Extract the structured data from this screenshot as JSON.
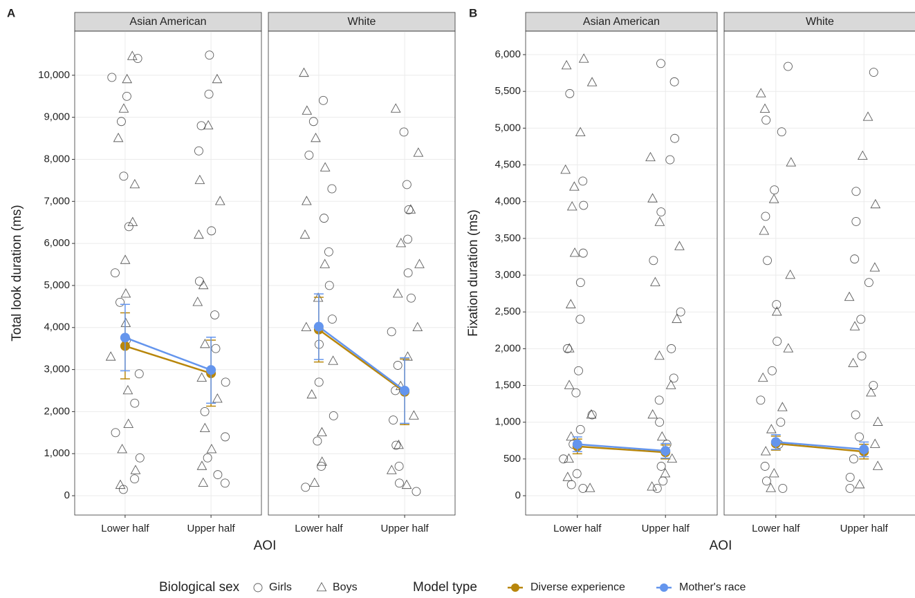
{
  "chart_data": [
    {
      "type": "pointrange",
      "label": "A",
      "ylabel": "Total look duration (ms)",
      "xlabel": "AOI",
      "facets": [
        "Asian American",
        "White"
      ],
      "categories": [
        "Lower half",
        "Upper half"
      ],
      "ylim": [
        -460,
        11050
      ],
      "grid": true,
      "yticks": [
        0,
        {
          "value": 1000,
          "label": "1,000"
        },
        {
          "value": 2000,
          "label": "2,000"
        },
        {
          "value": 3000,
          "label": "3,000"
        },
        {
          "value": 4000,
          "label": "4,000"
        },
        {
          "value": 5000,
          "label": "5,000"
        },
        {
          "value": 6000,
          "label": "6,000"
        },
        {
          "value": 7000,
          "label": "7,000"
        },
        {
          "value": 8000,
          "label": "8,000"
        },
        {
          "value": 9000,
          "label": "9,000"
        },
        {
          "value": 10000,
          "label": "10,000"
        }
      ],
      "points": [
        [
          [
            [
              10400,
              9950,
              9500,
              8900,
              7600,
              6400,
              5300,
              4600,
              3700,
              2900,
              2200,
              1500,
              900,
              400,
              150
            ],
            [
              10480,
              9550,
              8800,
              8200,
              6300,
              5100,
              4300,
              3500,
              2700,
              2000,
              1400,
              900,
              500,
              300
            ]
          ],
          [
            [
              10450,
              9900,
              9200,
              8500,
              7400,
              6500,
              5600,
              4800,
              4100,
              3300,
              2500,
              1700,
              1100,
              600,
              250
            ],
            [
              9900,
              8800,
              7500,
              7000,
              6200,
              5000,
              4600,
              3600,
              2800,
              2300,
              1600,
              1100,
              700,
              300
            ]
          ]
        ],
        [
          [
            [
              9400,
              8900,
              8100,
              7300,
              6600,
              5800,
              5000,
              4200,
              3600,
              2700,
              1900,
              1300,
              700,
              200
            ],
            [
              8650,
              7400,
              6800,
              6100,
              5300,
              4700,
              3900,
              3100,
              2500,
              1800,
              1200,
              700,
              300,
              100
            ]
          ],
          [
            [
              10050,
              9150,
              8500,
              7800,
              7000,
              6200,
              5500,
              4700,
              4000,
              3200,
              2400,
              1500,
              800,
              300
            ],
            [
              9200,
              8150,
              6800,
              6000,
              5500,
              4800,
              4000,
              3300,
              2600,
              1900,
              1200,
              600,
              250
            ]
          ]
        ]
      ],
      "models": [
        [
          {
            "values": [
              3560,
              2910
            ],
            "low": [
              2780,
              2130
            ],
            "high": [
              4350,
              3700
            ]
          },
          {
            "values": [
              3760,
              2990
            ],
            "low": [
              2970,
              2200
            ],
            "high": [
              4550,
              3770
            ]
          }
        ],
        [
          {
            "values": [
              3950,
              2470
            ],
            "low": [
              3180,
              1690
            ],
            "high": [
              4720,
              3250
            ]
          },
          {
            "values": [
              4020,
              2500
            ],
            "low": [
              3240,
              1720
            ],
            "high": [
              4800,
              3280
            ]
          }
        ]
      ]
    },
    {
      "type": "pointrange",
      "label": "B",
      "ylabel": "Fixation duration (ms)",
      "xlabel": "AOI",
      "facets": [
        "Asian American",
        "White"
      ],
      "categories": [
        "Lower half",
        "Upper half"
      ],
      "ylim": [
        -263,
        6320
      ],
      "grid": true,
      "yticks": [
        0,
        500,
        {
          "value": 1000,
          "label": "1,000"
        },
        {
          "value": 1500,
          "label": "1,500"
        },
        {
          "value": 2000,
          "label": "2,000"
        },
        {
          "value": 2500,
          "label": "2,500"
        },
        {
          "value": 3000,
          "label": "3,000"
        },
        {
          "value": 3500,
          "label": "3,500"
        },
        {
          "value": 4000,
          "label": "4,000"
        },
        {
          "value": 4500,
          "label": "4,500"
        },
        {
          "value": 5000,
          "label": "5,000"
        },
        {
          "value": 5500,
          "label": "5,500"
        },
        {
          "value": 6000,
          "label": "6,000"
        }
      ],
      "points": [
        [
          [
            [
              5470,
              4280,
              3950,
              3300,
              2900,
              2400,
              2000,
              1700,
              1400,
              1100,
              900,
              700,
              500,
              300,
              150,
              100
            ],
            [
              5880,
              5630,
              4860,
              4570,
              3860,
              3200,
              2500,
              2000,
              1600,
              1300,
              1000,
              700,
              400,
              200,
              100
            ]
          ],
          [
            [
              5940,
              5850,
              5620,
              4940,
              4430,
              4200,
              3930,
              3300,
              2600,
              2000,
              1500,
              1100,
              800,
              500,
              250,
              100
            ],
            [
              4600,
              4040,
              3720,
              3390,
              2900,
              2400,
              1900,
              1500,
              1100,
              800,
              500,
              300,
              120
            ]
          ]
        ],
        [
          [
            [
              5840,
              5110,
              4950,
              4160,
              3800,
              3200,
              2600,
              2100,
              1700,
              1300,
              1000,
              700,
              400,
              200,
              100
            ],
            [
              5760,
              4140,
              3730,
              3220,
              2900,
              2400,
              1900,
              1500,
              1100,
              800,
              500,
              250,
              100
            ]
          ],
          [
            [
              5470,
              5260,
              4530,
              4030,
              3600,
              3000,
              2500,
              2000,
              1600,
              1200,
              900,
              600,
              300,
              100
            ],
            [
              5150,
              4620,
              3960,
              3100,
              2700,
              2300,
              1800,
              1400,
              1000,
              700,
              400,
              150
            ]
          ]
        ]
      ],
      "models": [
        [
          {
            "values": [
              670,
              590
            ],
            "low": [
              570,
              500
            ],
            "high": [
              770,
              690
            ]
          },
          {
            "values": [
              700,
              610
            ],
            "low": [
              600,
              510
            ],
            "high": [
              800,
              710
            ]
          }
        ],
        [
          {
            "values": [
              710,
              600
            ],
            "low": [
              620,
              500
            ],
            "high": [
              810,
              700
            ]
          },
          {
            "values": [
              730,
              630
            ],
            "low": [
              630,
              530
            ],
            "high": [
              830,
              730
            ]
          }
        ]
      ]
    }
  ],
  "legend": {
    "sex_title": "Biological sex",
    "sex": [
      {
        "name": "Girls",
        "marker": "circle"
      },
      {
        "name": "Boys",
        "marker": "triangle"
      }
    ],
    "model_title": "Model type",
    "models": [
      {
        "name": "Diverse experience",
        "color": "#b8860b"
      },
      {
        "name": "Mother's race",
        "color": "#6495ed"
      }
    ]
  }
}
